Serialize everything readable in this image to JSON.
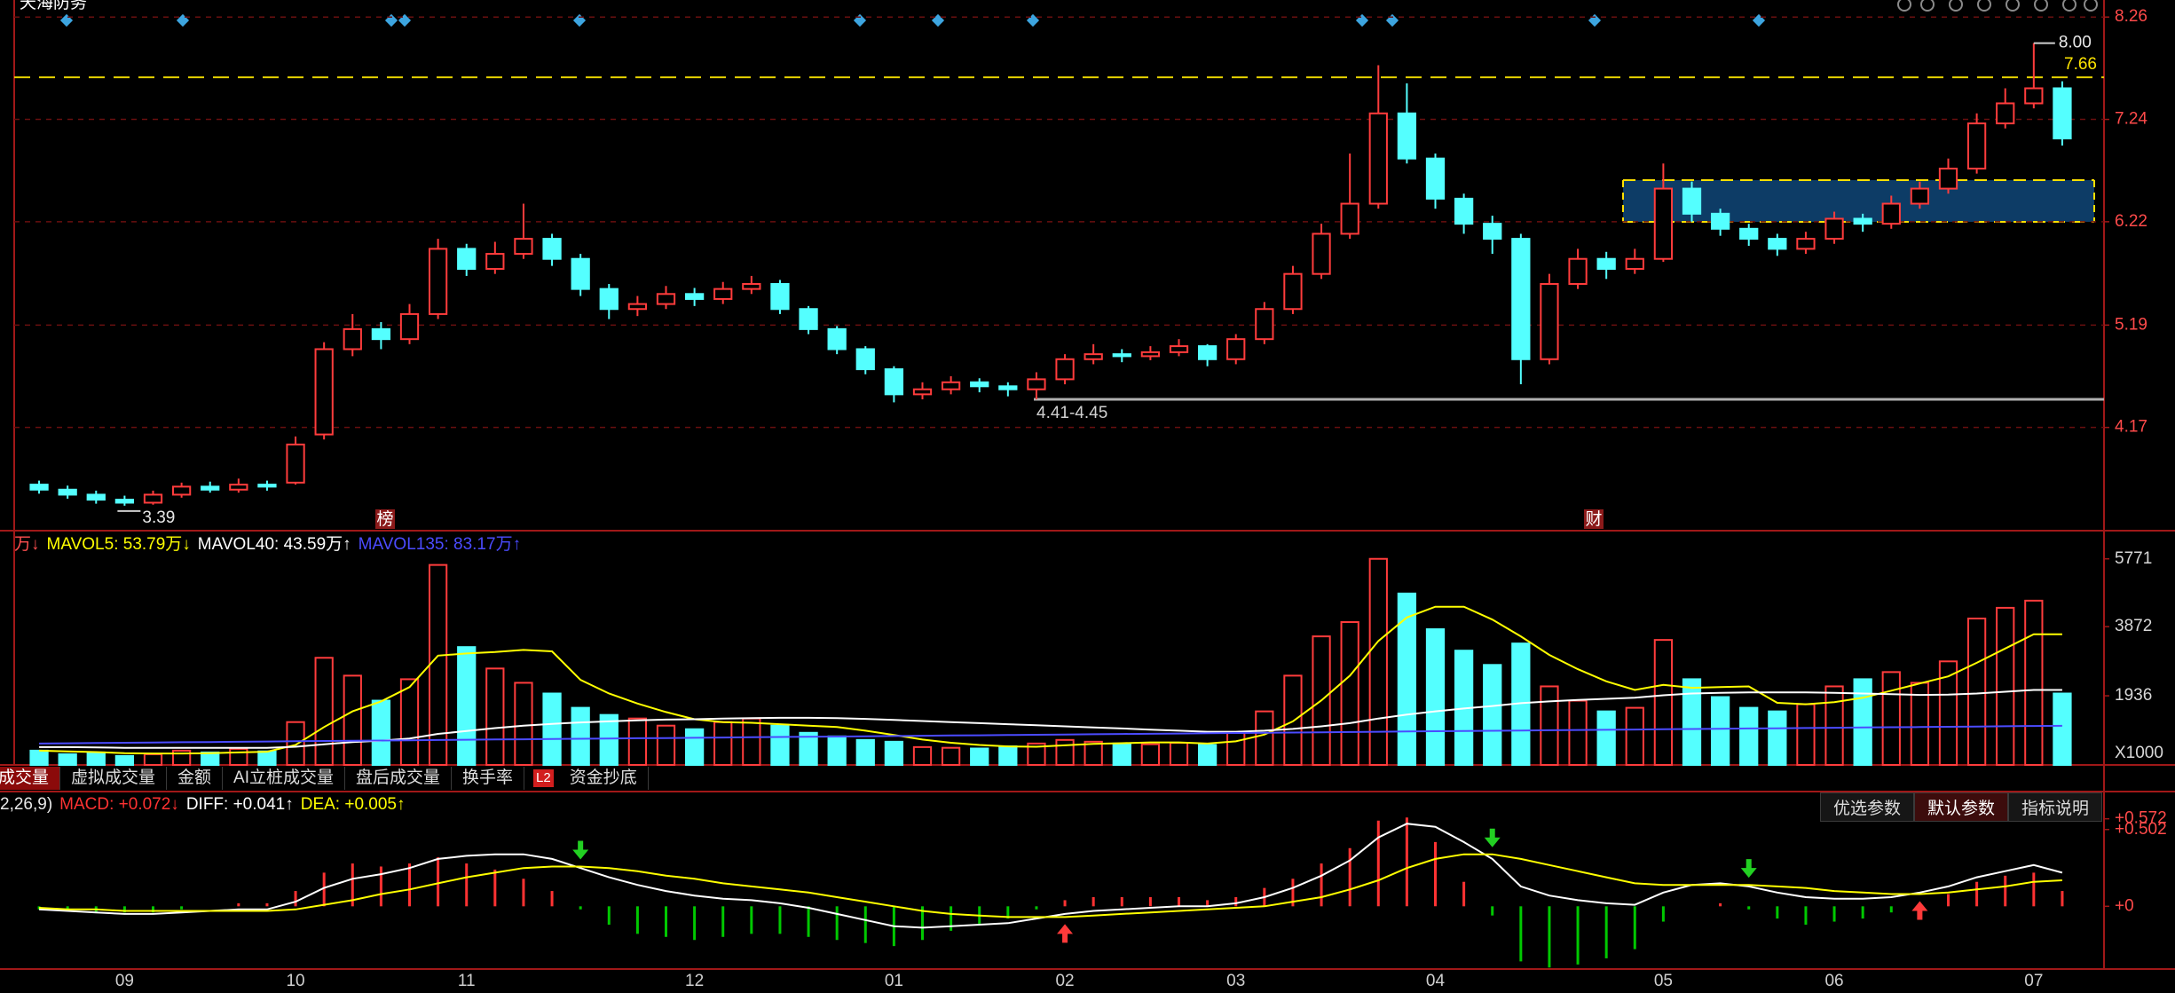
{
  "chart_data": [
    {
      "type": "candlestick",
      "title": "天海防务",
      "categories": [
        null,
        null,
        null,
        "09",
        null,
        null,
        null,
        null,
        null,
        "10",
        null,
        null,
        null,
        null,
        null,
        "11",
        null,
        null,
        null,
        null,
        null,
        null,
        null,
        "12",
        null,
        null,
        null,
        null,
        null,
        null,
        "01",
        null,
        null,
        null,
        null,
        null,
        "02",
        null,
        null,
        null,
        null,
        null,
        "03",
        null,
        null,
        null,
        null,
        null,
        null,
        "04",
        null,
        null,
        null,
        null,
        null,
        null,
        null,
        "05",
        null,
        null,
        null,
        null,
        null,
        "06",
        null,
        null,
        null,
        null,
        null,
        null,
        "07",
        null
      ],
      "open": [
        3.6,
        3.55,
        3.5,
        3.45,
        3.42,
        3.5,
        3.58,
        3.55,
        3.6,
        3.62,
        4.1,
        4.95,
        5.15,
        5.05,
        5.3,
        5.95,
        5.75,
        5.9,
        6.05,
        5.85,
        5.55,
        5.35,
        5.4,
        5.5,
        5.45,
        5.55,
        5.6,
        5.35,
        5.15,
        4.95,
        4.75,
        4.5,
        4.55,
        4.62,
        4.58,
        4.55,
        4.65,
        4.85,
        4.9,
        4.88,
        4.92,
        4.98,
        4.85,
        5.05,
        5.35,
        5.7,
        6.1,
        6.4,
        7.3,
        6.85,
        6.45,
        6.2,
        6.05,
        4.85,
        5.6,
        5.85,
        5.75,
        5.85,
        6.55,
        6.3,
        6.15,
        6.05,
        5.95,
        6.05,
        6.25,
        6.2,
        6.4,
        6.55,
        6.75,
        7.2,
        7.4,
        7.55
      ],
      "high": [
        3.64,
        3.59,
        3.54,
        3.49,
        3.54,
        3.62,
        3.63,
        3.66,
        3.64,
        4.08,
        5.02,
        5.3,
        5.22,
        5.4,
        6.05,
        6.0,
        6.02,
        6.4,
        6.1,
        5.9,
        5.6,
        5.48,
        5.58,
        5.56,
        5.62,
        5.68,
        5.64,
        5.38,
        5.18,
        4.98,
        4.78,
        4.62,
        4.68,
        4.66,
        4.62,
        4.72,
        4.9,
        5.0,
        4.95,
        4.98,
        5.05,
        5.0,
        5.1,
        5.42,
        5.78,
        6.2,
        6.9,
        7.78,
        7.6,
        6.9,
        6.5,
        6.28,
        6.1,
        5.7,
        5.95,
        5.92,
        5.95,
        6.8,
        6.62,
        6.35,
        6.2,
        6.1,
        6.12,
        6.32,
        6.3,
        6.48,
        6.62,
        6.85,
        7.3,
        7.55,
        8.0,
        7.62
      ],
      "low": [
        3.51,
        3.46,
        3.41,
        3.39,
        3.4,
        3.47,
        3.52,
        3.52,
        3.54,
        3.6,
        4.05,
        4.88,
        4.95,
        5.0,
        5.25,
        5.68,
        5.7,
        5.85,
        5.78,
        5.48,
        5.25,
        5.28,
        5.35,
        5.38,
        5.4,
        5.5,
        5.3,
        5.1,
        4.9,
        4.7,
        4.42,
        4.45,
        4.5,
        4.52,
        4.48,
        4.45,
        4.6,
        4.8,
        4.82,
        4.84,
        4.88,
        4.78,
        4.8,
        5.0,
        5.3,
        5.65,
        6.05,
        6.35,
        6.8,
        6.35,
        6.1,
        5.9,
        4.6,
        4.8,
        5.55,
        5.65,
        5.7,
        5.82,
        6.22,
        6.08,
        5.98,
        5.88,
        5.9,
        6.0,
        6.12,
        6.15,
        6.35,
        6.5,
        6.7,
        7.15,
        7.35,
        6.98
      ],
      "close": [
        3.55,
        3.5,
        3.45,
        3.42,
        3.5,
        3.58,
        3.55,
        3.6,
        3.58,
        4.0,
        4.95,
        5.15,
        5.05,
        5.3,
        5.95,
        5.75,
        5.9,
        6.05,
        5.85,
        5.55,
        5.35,
        5.4,
        5.5,
        5.45,
        5.55,
        5.6,
        5.35,
        5.15,
        4.95,
        4.75,
        4.5,
        4.55,
        4.62,
        4.58,
        4.55,
        4.65,
        4.85,
        4.9,
        4.88,
        4.92,
        4.98,
        4.85,
        5.05,
        5.35,
        5.7,
        6.1,
        6.4,
        7.3,
        6.85,
        6.45,
        6.2,
        6.05,
        4.85,
        5.6,
        5.85,
        5.75,
        5.85,
        6.55,
        6.3,
        6.15,
        6.05,
        5.95,
        6.05,
        6.25,
        6.2,
        6.4,
        6.55,
        6.75,
        7.2,
        7.4,
        7.55,
        7.05
      ],
      "up_color": "#ff3c3c",
      "down_color": "#54ffff",
      "ylim": [
        3.15,
        8.43
      ],
      "yticks": [
        8.26,
        7.24,
        6.22,
        5.19,
        4.17
      ],
      "grid": true,
      "annotations": {
        "high_label": {
          "value": 8,
          "label": "8.00"
        },
        "low_label": 3.39,
        "resistance": 7.66,
        "support": {
          "value": 4.45,
          "label": "4.41-4.45"
        },
        "event_markers": [
          "榜",
          "财"
        ]
      }
    },
    {
      "type": "bar",
      "values": [
        400,
        300,
        350,
        250,
        300,
        400,
        350,
        450,
        380,
        1200,
        3000,
        2500,
        1800,
        2400,
        5600,
        3300,
        2700,
        2300,
        2000,
        1600,
        1400,
        1300,
        1100,
        1000,
        1200,
        1300,
        1100,
        900,
        800,
        700,
        650,
        500,
        480,
        460,
        520,
        600,
        700,
        650,
        600,
        580,
        620,
        560,
        900,
        1500,
        2500,
        3600,
        4000,
        5771,
        4800,
        3800,
        3200,
        2800,
        3400,
        2200,
        1800,
        1500,
        1600,
        3500,
        2400,
        1900,
        1600,
        1500,
        1700,
        2200,
        2400,
        2600,
        2300,
        2900,
        4100,
        4400,
        4600,
        2000
      ],
      "up_color": "#ff3c3c",
      "down_color": "#54ffff",
      "legend_prefix": "万↓",
      "series": [
        {
          "name": "MAVOL5: 53.79万↓",
          "color": "#ffff00",
          "values": [
            400,
            380,
            360,
            330,
            320,
            320,
            330,
            350,
            370,
            560,
            1060,
            1500,
            1780,
            2180,
            3060,
            3120,
            3160,
            3220,
            3180,
            2380,
            2000,
            1720,
            1480,
            1280,
            1200,
            1180,
            1140,
            1100,
            1060,
            960,
            840,
            710,
            620,
            560,
            520,
            510,
            550,
            590,
            610,
            630,
            630,
            600,
            660,
            850,
            1220,
            1810,
            2500,
            3470,
            4130,
            4430,
            4430,
            4070,
            3600,
            3080,
            2680,
            2340,
            2100,
            2240,
            2160,
            2180,
            2200,
            1740,
            1700,
            1760,
            1880,
            2080,
            2280,
            2480,
            2860,
            3260,
            3660,
            3660
          ]
        },
        {
          "name": "MAVOL40: 43.59万↑",
          "color": "#ffffff",
          "values": [
            500,
            500,
            490,
            480,
            480,
            480,
            480,
            480,
            480,
            510,
            580,
            640,
            680,
            740,
            870,
            950,
            1030,
            1100,
            1150,
            1190,
            1220,
            1250,
            1270,
            1280,
            1300,
            1310,
            1320,
            1320,
            1310,
            1290,
            1260,
            1230,
            1200,
            1170,
            1140,
            1110,
            1080,
            1050,
            1020,
            990,
            960,
            930,
            930,
            960,
            1010,
            1080,
            1170,
            1300,
            1410,
            1500,
            1580,
            1650,
            1730,
            1780,
            1820,
            1850,
            1880,
            1950,
            2000,
            2020,
            2030,
            2030,
            2030,
            2020,
            2000,
            1980,
            1960,
            1970,
            2000,
            2050,
            2100,
            2100
          ]
        },
        {
          "name": "MAVOL135: 83.17万↑",
          "color": "#4b4bff",
          "values": [
            600,
            607,
            614,
            621,
            628,
            635,
            642,
            649,
            656,
            663,
            670,
            677,
            684,
            691,
            698,
            705,
            712,
            719,
            726,
            733,
            740,
            747,
            754,
            761,
            768,
            775,
            782,
            789,
            796,
            803,
            810,
            817,
            824,
            831,
            838,
            845,
            852,
            859,
            866,
            873,
            880,
            887,
            894,
            901,
            908,
            915,
            922,
            929,
            936,
            943,
            950,
            957,
            964,
            971,
            978,
            985,
            992,
            999,
            1006,
            1013,
            1020,
            1027,
            1034,
            1041,
            1048,
            1055,
            1062,
            1069,
            1076,
            1083,
            1090,
            1097
          ]
        }
      ],
      "ylim": [
        0,
        6510
      ],
      "yticks": [
        5771,
        3872,
        1936
      ],
      "unit_label": "X1000",
      "grid": false
    },
    {
      "type": "macd",
      "params_label": "2,26,9)",
      "series": [
        {
          "name": "MACD: +0.072↓",
          "color": "#ff3232",
          "values": [
            -0.02,
            -0.02,
            -0.04,
            -0.04,
            -0.04,
            -0.02,
            0,
            0.02,
            0.02,
            0.1,
            0.22,
            0.28,
            0.26,
            0.28,
            0.32,
            0.28,
            0.24,
            0.18,
            0.1,
            -0.02,
            -0.12,
            -0.18,
            -0.2,
            -0.22,
            -0.2,
            -0.18,
            -0.18,
            -0.2,
            -0.22,
            -0.24,
            -0.26,
            -0.22,
            -0.16,
            -0.12,
            -0.08,
            -0.02,
            0.04,
            0.06,
            0.06,
            0.06,
            0.06,
            0.04,
            0.06,
            0.12,
            0.18,
            0.28,
            0.38,
            0.56,
            0.58,
            0.42,
            0.16,
            -0.06,
            -0.36,
            -0.4,
            -0.38,
            -0.34,
            -0.28,
            -0.1,
            0,
            0.02,
            -0.02,
            -0.08,
            -0.12,
            -0.1,
            -0.08,
            -0.04,
            0.02,
            0.08,
            0.16,
            0.2,
            0.22,
            0.1
          ]
        },
        {
          "name": "DIFF: +0.041↑",
          "color": "#ffffff",
          "values": [
            -0.02,
            -0.03,
            -0.04,
            -0.05,
            -0.05,
            -0.04,
            -0.03,
            -0.02,
            -0.02,
            0.03,
            0.12,
            0.18,
            0.21,
            0.25,
            0.31,
            0.33,
            0.34,
            0.34,
            0.31,
            0.25,
            0.19,
            0.14,
            0.1,
            0.07,
            0.05,
            0.04,
            0.02,
            -0.01,
            -0.05,
            -0.09,
            -0.13,
            -0.14,
            -0.13,
            -0.12,
            -0.11,
            -0.08,
            -0.05,
            -0.03,
            -0.02,
            -0.01,
            0,
            0,
            0.02,
            0.06,
            0.12,
            0.2,
            0.3,
            0.45,
            0.54,
            0.52,
            0.42,
            0.31,
            0.13,
            0.07,
            0.04,
            0.02,
            0.01,
            0.09,
            0.14,
            0.15,
            0.13,
            0.09,
            0.06,
            0.05,
            0.05,
            0.06,
            0.09,
            0.13,
            0.19,
            0.23,
            0.27,
            0.22
          ]
        },
        {
          "name": "DEA: +0.005↑",
          "color": "#ffff00",
          "values": [
            -0.01,
            -0.02,
            -0.02,
            -0.03,
            -0.03,
            -0.03,
            -0.03,
            -0.03,
            -0.03,
            -0.02,
            0.01,
            0.04,
            0.08,
            0.11,
            0.15,
            0.19,
            0.22,
            0.25,
            0.26,
            0.26,
            0.25,
            0.23,
            0.2,
            0.18,
            0.15,
            0.13,
            0.11,
            0.09,
            0.06,
            0.03,
            0,
            -0.03,
            -0.05,
            -0.06,
            -0.07,
            -0.07,
            -0.07,
            -0.06,
            -0.05,
            -0.04,
            -0.03,
            -0.02,
            -0.01,
            0,
            0.03,
            0.06,
            0.11,
            0.17,
            0.25,
            0.31,
            0.34,
            0.34,
            0.31,
            0.27,
            0.23,
            0.19,
            0.15,
            0.14,
            0.14,
            0.14,
            0.14,
            0.13,
            0.12,
            0.1,
            0.09,
            0.08,
            0.08,
            0.09,
            0.11,
            0.13,
            0.16,
            0.17
          ]
        }
      ],
      "negative_color": "#00c800",
      "ylim": [
        -0.41,
        0.75
      ],
      "yticks": [
        {
          "value": 0.572,
          "label": "+0.572"
        },
        {
          "value": 0.502,
          "label": "+0.502"
        },
        {
          "value": 0,
          "label": "+0"
        }
      ],
      "grid": false,
      "buttons": [
        "优选参数",
        "默认参数",
        "指标说明"
      ]
    }
  ],
  "toolbar": {
    "tabs": [
      "成交量",
      "虚拟成交量",
      "金额",
      "AI立桩成交量",
      "盘后成交量",
      "换手率",
      "资金抄底"
    ],
    "badge": "L2"
  }
}
